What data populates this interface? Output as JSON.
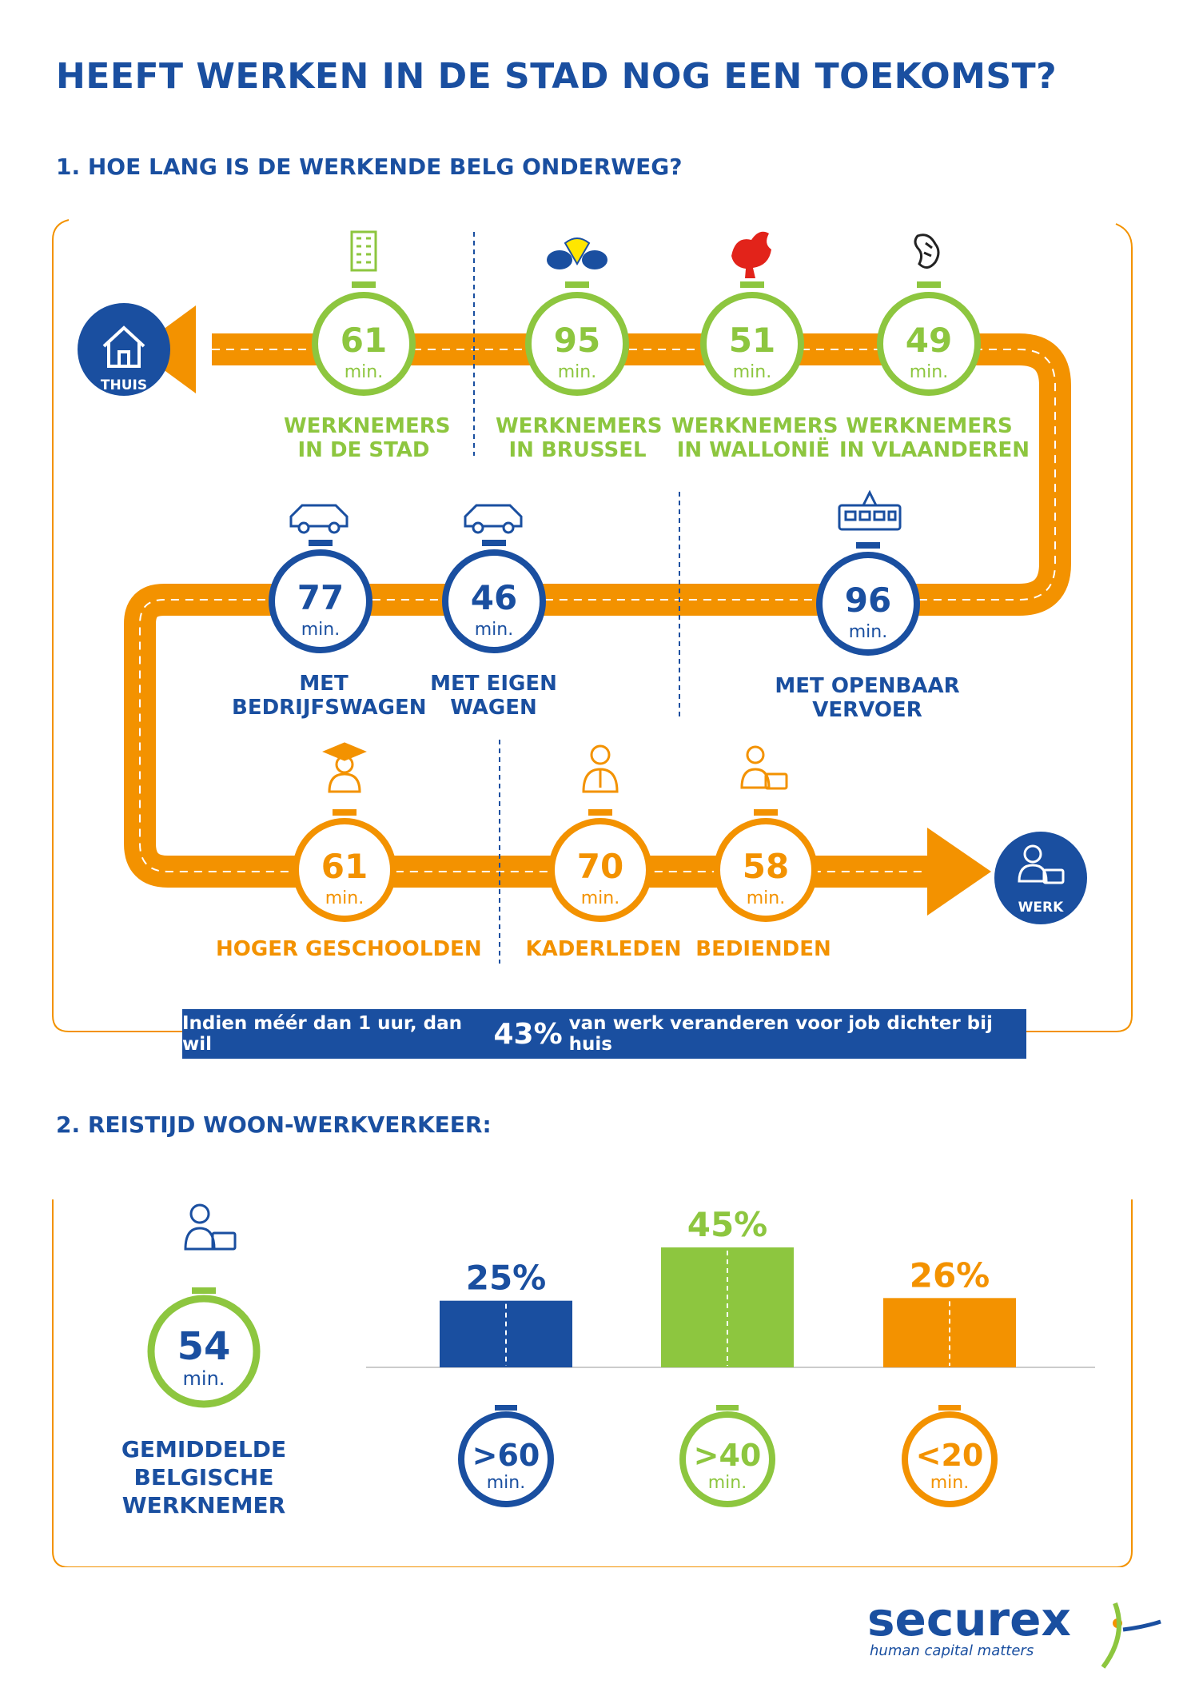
{
  "title": "HEEFT WERKEN IN DE STAD NOG EEN TOEKOMST?",
  "section1": {
    "heading": "1. HOE LANG IS DE WERKENDE BELG ONDERWEG?",
    "home_label": "THUIS",
    "work_label": "WERK",
    "unit": "min.",
    "row1": [
      {
        "value": "61",
        "line1": "WERKNEMERS",
        "line2": "IN DE STAD",
        "icon": "building-icon"
      },
      {
        "value": "95",
        "line1": "WERKNEMERS",
        "line2": "IN BRUSSEL",
        "icon": "iris-icon"
      },
      {
        "value": "51",
        "line1": "WERKNEMERS",
        "line2": "IN WALLONIË",
        "icon": "rooster-icon"
      },
      {
        "value": "49",
        "line1": "WERKNEMERS",
        "line2": "IN VLAANDEREN",
        "icon": "lion-icon"
      }
    ],
    "row2": [
      {
        "value": "77",
        "line1": "MET",
        "line2": "BEDRIJFSWAGEN",
        "icon": "car-icon"
      },
      {
        "value": "46",
        "line1": "MET EIGEN",
        "line2": "WAGEN",
        "icon": "car-icon"
      },
      {
        "value": "96",
        "line1": "MET OPENBAAR",
        "line2": "VERVOER",
        "icon": "tram-icon"
      }
    ],
    "row3": [
      {
        "value": "61",
        "line1": "HOGER GESCHOOLDEN",
        "icon": "graduate-icon"
      },
      {
        "value": "70",
        "line1": "KADERLEDEN",
        "icon": "manager-icon"
      },
      {
        "value": "58",
        "line1": "BEDIENDEN",
        "icon": "employee-icon"
      }
    ],
    "banner": {
      "before": "Indien méér dan 1 uur, dan wil",
      "highlight": "43%",
      "after": "van werk veranderen voor job dichter bij huis"
    }
  },
  "section2": {
    "heading": "2. REISTIJD WOON-WERKVERKEER:",
    "average": {
      "value": "54",
      "unit": "min.",
      "line1": "GEMIDDELDE",
      "line2": "BELGISCHE",
      "line3": "WERKNEMER"
    }
  },
  "chart_data": {
    "type": "bar",
    "categories": [
      ">60 min.",
      ">40 min.",
      "<20 min."
    ],
    "values": [
      25,
      45,
      26
    ],
    "value_labels": [
      "25%",
      "45%",
      "26%"
    ],
    "category_labels": [
      ">60",
      ">40",
      "<20"
    ],
    "unit_label": "min.",
    "colors": [
      "#1a4fa0",
      "#8dc63f",
      "#f39200"
    ],
    "ylim": [
      0,
      45
    ]
  },
  "logo": {
    "name": "securex",
    "tagline": "human capital matters"
  },
  "colors": {
    "blue": "#1a4fa0",
    "green": "#8dc63f",
    "orange": "#f39200"
  }
}
